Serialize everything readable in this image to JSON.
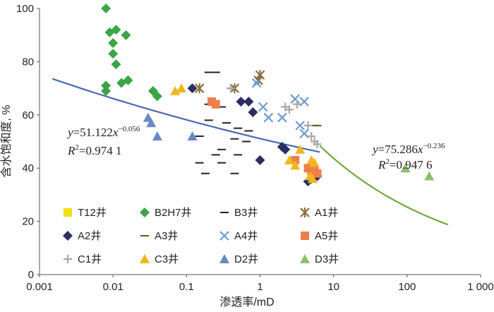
{
  "chart_data": {
    "type": "scatter",
    "x_scale": "log",
    "xlim": [
      0.001,
      1000
    ],
    "ylim": [
      0,
      100
    ],
    "grid": false,
    "legend_position": "bottom-left",
    "xlabel": "渗透率/mD",
    "ylabel": "含水饱和度, %",
    "x_tick_labels": [
      "0.001",
      "0.01",
      "0.1",
      "1",
      "10",
      "100",
      "1 000"
    ],
    "y_tick_labels": [
      "0",
      "20",
      "40",
      "60",
      "80",
      "100"
    ],
    "series": [
      {
        "name": "T12井",
        "marker": "square",
        "color": "#f2e013",
        "points": []
      },
      {
        "name": "B2H7井",
        "marker": "diamond",
        "color": "#3aa547",
        "points": [
          [
            0.008,
            100
          ],
          [
            0.009,
            91
          ],
          [
            0.011,
            92
          ],
          [
            0.015,
            90
          ],
          [
            0.01,
            87
          ],
          [
            0.01,
            83
          ],
          [
            0.011,
            79
          ],
          [
            0.013,
            72
          ],
          [
            0.016,
            73
          ],
          [
            0.008,
            71
          ],
          [
            0.008,
            69
          ],
          [
            0.035,
            69
          ],
          [
            0.04,
            67
          ]
        ]
      },
      {
        "name": "B3井",
        "marker": "dash",
        "color": "#222222",
        "points": [
          [
            0.2,
            76
          ],
          [
            0.25,
            76
          ],
          [
            0.2,
            64
          ],
          [
            0.3,
            63
          ],
          [
            0.2,
            58
          ],
          [
            0.35,
            57
          ],
          [
            0.5,
            55
          ],
          [
            0.7,
            54
          ],
          [
            0.15,
            52
          ],
          [
            0.45,
            51
          ],
          [
            0.65,
            50
          ],
          [
            0.3,
            47
          ],
          [
            0.25,
            45
          ],
          [
            0.5,
            45
          ],
          [
            0.15,
            42
          ],
          [
            0.3,
            42
          ],
          [
            0.18,
            38
          ],
          [
            0.45,
            38
          ]
        ]
      },
      {
        "name": "A1井",
        "marker": "asterisk",
        "color": "#8b6b3a",
        "points": [
          [
            1.0,
            75
          ],
          [
            0.95,
            73
          ],
          [
            0.15,
            70
          ],
          [
            0.45,
            70
          ]
        ]
      },
      {
        "name": "A2井",
        "marker": "diamond",
        "color": "#2b2e61",
        "points": [
          [
            0.12,
            70
          ],
          [
            0.55,
            65
          ],
          [
            0.7,
            65
          ],
          [
            0.8,
            61
          ],
          [
            2.0,
            48
          ],
          [
            2.2,
            47
          ],
          [
            1.0,
            43
          ],
          [
            4.5,
            35
          ],
          [
            5.0,
            36
          ],
          [
            6.0,
            37
          ]
        ]
      },
      {
        "name": "A3井",
        "marker": "dash",
        "color": "#5a5a1a",
        "points": [
          [
            5.5,
            56
          ],
          [
            6.0,
            56
          ]
        ]
      },
      {
        "name": "A4井",
        "marker": "x",
        "color": "#6b9bd1",
        "points": [
          [
            0.9,
            72
          ],
          [
            1.1,
            63
          ],
          [
            1.3,
            59
          ],
          [
            2.0,
            59
          ],
          [
            3.0,
            66
          ],
          [
            4.0,
            65
          ],
          [
            3.5,
            56
          ],
          [
            4.0,
            53
          ]
        ]
      },
      {
        "name": "A5井",
        "marker": "square",
        "color": "#ee7f4a",
        "points": [
          [
            0.22,
            65
          ],
          [
            0.25,
            64
          ],
          [
            3.0,
            43
          ],
          [
            4.5,
            40
          ],
          [
            5.0,
            39
          ],
          [
            6.0,
            38
          ],
          [
            5.5,
            39
          ]
        ]
      },
      {
        "name": "C1井",
        "marker": "plus",
        "color": "#a9a9a9",
        "points": [
          [
            0.4,
            70
          ],
          [
            2.2,
            63
          ],
          [
            2.5,
            62
          ],
          [
            3.2,
            64
          ],
          [
            4.5,
            56
          ],
          [
            5.0,
            52
          ],
          [
            5.5,
            50
          ],
          [
            6.0,
            49
          ]
        ]
      },
      {
        "name": "C3井",
        "marker": "triangle",
        "color": "#f0b71e",
        "points": [
          [
            0.07,
            69
          ],
          [
            0.085,
            70
          ],
          [
            2.5,
            43
          ],
          [
            3.0,
            41
          ],
          [
            3.5,
            47
          ],
          [
            5.0,
            43
          ],
          [
            5.5,
            42
          ],
          [
            4.8,
            37
          ],
          [
            5.2,
            36
          ]
        ]
      },
      {
        "name": "D2井",
        "marker": "triangle",
        "color": "#6a88c6",
        "points": [
          [
            0.03,
            59
          ],
          [
            0.033,
            57
          ],
          [
            0.04,
            52
          ],
          [
            0.12,
            52
          ]
        ]
      },
      {
        "name": "D3井",
        "marker": "triangle",
        "color": "#8fbf6e",
        "points": [
          [
            95,
            40
          ],
          [
            200,
            37
          ]
        ]
      }
    ],
    "trendlines": [
      {
        "a": 51.122,
        "b": -0.056,
        "x_range": [
          0.0015,
          6.5
        ],
        "color": "#4a68b4"
      },
      {
        "a": 75.286,
        "b": -0.236,
        "x_range": [
          6.5,
          360
        ],
        "color": "#72a83c"
      }
    ],
    "annotations": [
      {
        "italic": "y",
        "text": "=51.122",
        "italic2": "x",
        "sup": "−0.056"
      },
      {
        "italic": "R",
        "sup": "2",
        "text": "=0.974 1"
      },
      {
        "italic": "y",
        "text": "=75.286",
        "italic2": "x",
        "sup": "−0.236"
      },
      {
        "italic": "R",
        "sup": "2",
        "text": "=0.947 6"
      }
    ]
  }
}
